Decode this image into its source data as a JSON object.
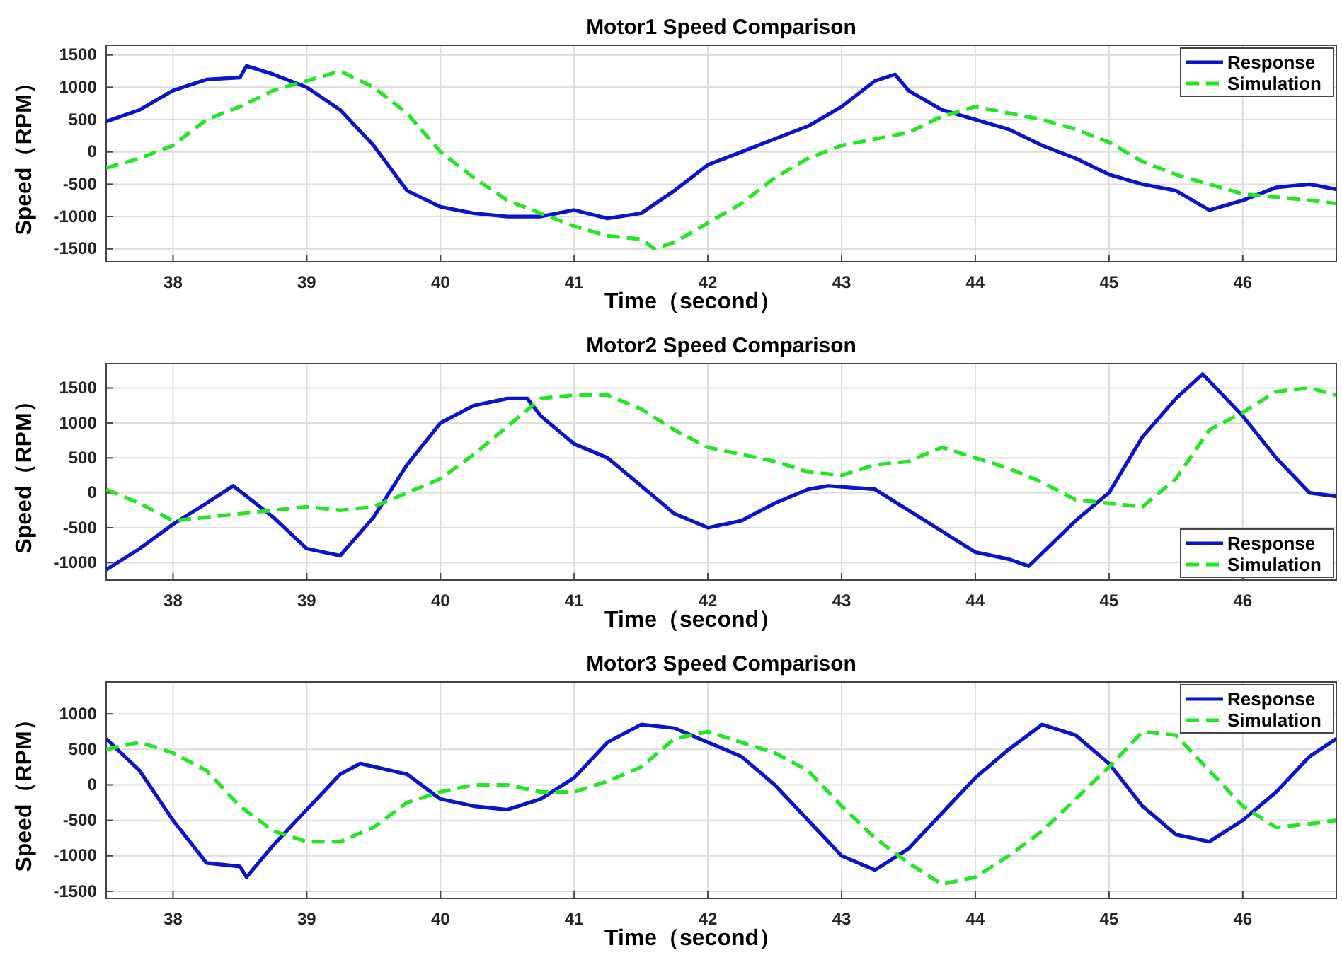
{
  "chart_data": [
    {
      "type": "line",
      "title": "Motor1 Speed Comparison",
      "xlabel": "Time（second）",
      "ylabel": "Speed（RPM）",
      "xlim": [
        37.5,
        46.7
      ],
      "xticks": [
        38,
        39,
        40,
        41,
        42,
        43,
        44,
        45,
        46
      ],
      "ylim": [
        -1700,
        1650
      ],
      "yticks": [
        -1500,
        -1000,
        -500,
        0,
        500,
        1000,
        1500
      ],
      "grid": true,
      "legend": "top right",
      "series": [
        {
          "name": "Response",
          "color": "#0a14c8",
          "line_style": "solid",
          "x": [
            37.5,
            37.75,
            38,
            38.25,
            38.5,
            38.55,
            38.75,
            39,
            39.25,
            39.5,
            39.75,
            40,
            40.25,
            40.5,
            40.75,
            41,
            41.25,
            41.5,
            41.75,
            42,
            42.25,
            42.5,
            42.75,
            43,
            43.25,
            43.4,
            43.5,
            43.75,
            44,
            44.25,
            44.5,
            44.75,
            45,
            45.25,
            45.5,
            45.75,
            46,
            46.25,
            46.5,
            46.7
          ],
          "values": [
            470,
            650,
            950,
            1120,
            1150,
            1330,
            1200,
            1000,
            650,
            100,
            -600,
            -850,
            -950,
            -1000,
            -1000,
            -900,
            -1030,
            -950,
            -600,
            -200,
            0,
            200,
            400,
            700,
            1100,
            1200,
            950,
            650,
            500,
            350,
            100,
            -100,
            -350,
            -500,
            -600,
            -900,
            -750,
            -550,
            -500,
            -580
          ]
        },
        {
          "name": "Simulation",
          "color": "#22e622",
          "line_style": "dashed",
          "x": [
            37.5,
            37.75,
            38,
            38.25,
            38.5,
            38.75,
            39,
            39.25,
            39.5,
            39.75,
            40,
            40.25,
            40.5,
            40.75,
            41,
            41.25,
            41.5,
            41.6,
            41.75,
            42,
            42.25,
            42.5,
            42.75,
            43,
            43.25,
            43.5,
            43.75,
            44,
            44.25,
            44.5,
            44.75,
            45,
            45.25,
            45.5,
            45.75,
            46,
            46.25,
            46.5,
            46.7
          ],
          "values": [
            -250,
            -100,
            100,
            500,
            700,
            950,
            1100,
            1250,
            1000,
            600,
            0,
            -400,
            -750,
            -950,
            -1150,
            -1300,
            -1350,
            -1500,
            -1400,
            -1100,
            -800,
            -400,
            -100,
            100,
            200,
            300,
            550,
            700,
            600,
            500,
            350,
            150,
            -150,
            -350,
            -500,
            -650,
            -700,
            -750,
            -800
          ]
        }
      ]
    },
    {
      "type": "line",
      "title": "Motor2 Speed Comparison",
      "xlabel": "Time（second）",
      "ylabel": "Speed（RPM）",
      "xlim": [
        37.5,
        46.7
      ],
      "xticks": [
        38,
        39,
        40,
        41,
        42,
        43,
        44,
        45,
        46
      ],
      "ylim": [
        -1250,
        1850
      ],
      "yticks": [
        -1000,
        -500,
        0,
        500,
        1000,
        1500
      ],
      "grid": true,
      "legend": "bottom right",
      "series": [
        {
          "name": "Response",
          "color": "#0a14c8",
          "line_style": "solid",
          "x": [
            37.5,
            37.75,
            38,
            38.25,
            38.45,
            38.75,
            39,
            39.25,
            39.5,
            39.75,
            40,
            40.25,
            40.5,
            40.65,
            40.75,
            41,
            41.25,
            41.5,
            41.75,
            42,
            42.25,
            42.5,
            42.75,
            42.9,
            43.25,
            43.5,
            43.75,
            44,
            44.25,
            44.4,
            44.75,
            45,
            45.25,
            45.5,
            45.7,
            46,
            46.25,
            46.5,
            46.7
          ],
          "values": [
            -1100,
            -800,
            -450,
            -150,
            100,
            -350,
            -800,
            -900,
            -350,
            400,
            1000,
            1250,
            1350,
            1350,
            1100,
            700,
            500,
            100,
            -300,
            -500,
            -400,
            -150,
            50,
            100,
            50,
            -250,
            -550,
            -850,
            -950,
            -1050,
            -400,
            0,
            800,
            1350,
            1700,
            1100,
            500,
            0,
            -50
          ]
        },
        {
          "name": "Simulation",
          "color": "#22e622",
          "line_style": "dashed",
          "x": [
            37.5,
            37.75,
            38,
            38.25,
            38.5,
            38.75,
            39,
            39.25,
            39.5,
            39.75,
            40,
            40.25,
            40.5,
            40.75,
            41,
            41.25,
            41.5,
            41.75,
            42,
            42.25,
            42.5,
            42.75,
            43,
            43.25,
            43.5,
            43.75,
            44,
            44.25,
            44.5,
            44.75,
            45,
            45.25,
            45.5,
            45.75,
            46,
            46.25,
            46.5,
            46.7
          ],
          "values": [
            50,
            -150,
            -400,
            -350,
            -300,
            -250,
            -200,
            -250,
            -200,
            0,
            200,
            550,
            950,
            1350,
            1400,
            1400,
            1200,
            900,
            650,
            550,
            450,
            300,
            250,
            400,
            450,
            650,
            500,
            350,
            150,
            -100,
            -150,
            -200,
            200,
            900,
            1150,
            1450,
            1500,
            1400
          ]
        }
      ]
    },
    {
      "type": "line",
      "title": "Motor3 Speed Comparison",
      "xlabel": "Time（second）",
      "ylabel": "Speed（RPM）",
      "xlim": [
        37.5,
        46.7
      ],
      "xticks": [
        38,
        39,
        40,
        41,
        42,
        43,
        44,
        45,
        46
      ],
      "ylim": [
        -1600,
        1450
      ],
      "yticks": [
        -1500,
        -1000,
        -500,
        0,
        500,
        1000
      ],
      "grid": true,
      "legend": "top right",
      "series": [
        {
          "name": "Response",
          "color": "#0a14c8",
          "line_style": "solid",
          "x": [
            37.5,
            37.75,
            38,
            38.25,
            38.5,
            38.55,
            38.75,
            39,
            39.25,
            39.4,
            39.75,
            40,
            40.25,
            40.5,
            40.75,
            41,
            41.25,
            41.5,
            41.75,
            42,
            42.25,
            42.5,
            42.75,
            43,
            43.25,
            43.5,
            43.75,
            44,
            44.25,
            44.5,
            44.75,
            45,
            45.25,
            45.5,
            45.75,
            46,
            46.25,
            46.5,
            46.7
          ],
          "values": [
            650,
            200,
            -500,
            -1100,
            -1150,
            -1300,
            -850,
            -350,
            150,
            300,
            150,
            -200,
            -300,
            -350,
            -200,
            100,
            600,
            850,
            800,
            600,
            400,
            0,
            -500,
            -1000,
            -1200,
            -900,
            -400,
            100,
            500,
            850,
            700,
            300,
            -300,
            -700,
            -800,
            -500,
            -100,
            400,
            650
          ]
        },
        {
          "name": "Simulation",
          "color": "#22e622",
          "line_style": "dashed",
          "x": [
            37.5,
            37.75,
            38,
            38.25,
            38.5,
            38.75,
            39,
            39.25,
            39.5,
            39.75,
            40,
            40.25,
            40.5,
            40.75,
            41,
            41.25,
            41.5,
            41.75,
            42,
            42.25,
            42.5,
            42.75,
            43,
            43.25,
            43.5,
            43.75,
            44,
            44.25,
            44.5,
            44.75,
            45,
            45.25,
            45.5,
            45.75,
            46,
            46.25,
            46.5,
            46.7
          ],
          "values": [
            500,
            600,
            450,
            200,
            -300,
            -650,
            -800,
            -800,
            -600,
            -250,
            -100,
            0,
            0,
            -100,
            -100,
            50,
            250,
            650,
            750,
            600,
            450,
            200,
            -300,
            -750,
            -1100,
            -1400,
            -1300,
            -1000,
            -650,
            -200,
            250,
            750,
            700,
            200,
            -300,
            -600,
            -550,
            -500
          ]
        }
      ]
    }
  ]
}
